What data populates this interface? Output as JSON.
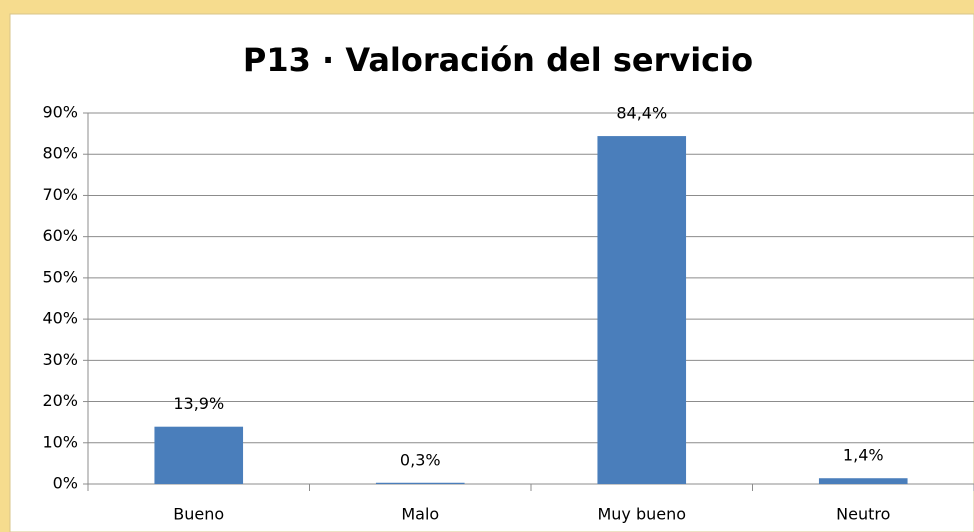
{
  "chart_data": {
    "type": "bar",
    "title": "P13 · Valoración del servicio",
    "categories": [
      "Bueno",
      "Malo",
      "Muy bueno",
      "Neutro"
    ],
    "values": [
      13.9,
      0.3,
      84.4,
      1.4
    ],
    "value_labels": [
      "13,9%",
      "0,3%",
      "84,4%",
      "1,4%"
    ],
    "color": "#4a7ebb",
    "ylim": [
      0,
      90
    ],
    "yticks": [
      {
        "value": 0,
        "label": "0%"
      },
      {
        "value": 10,
        "label": "10%"
      },
      {
        "value": 20,
        "label": "20%"
      },
      {
        "value": 30,
        "label": "30%"
      },
      {
        "value": 40,
        "label": "40%"
      },
      {
        "value": 50,
        "label": "50%"
      },
      {
        "value": 60,
        "label": "60%"
      },
      {
        "value": 70,
        "label": "70%"
      },
      {
        "value": 80,
        "label": "80%"
      },
      {
        "value": 90,
        "label": "90%"
      }
    ],
    "grid": true
  }
}
